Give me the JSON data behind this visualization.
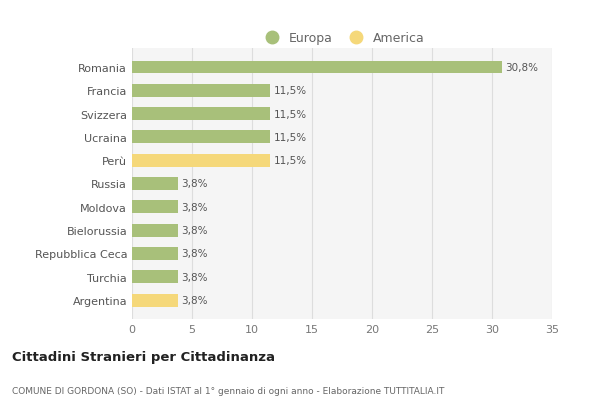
{
  "categories": [
    "Romania",
    "Francia",
    "Svizzera",
    "Ucraina",
    "Perù",
    "Russia",
    "Moldova",
    "Bielorussia",
    "Repubblica Ceca",
    "Turchia",
    "Argentina"
  ],
  "values": [
    30.8,
    11.5,
    11.5,
    11.5,
    11.5,
    3.8,
    3.8,
    3.8,
    3.8,
    3.8,
    3.8
  ],
  "labels": [
    "30,8%",
    "11,5%",
    "11,5%",
    "11,5%",
    "11,5%",
    "3,8%",
    "3,8%",
    "3,8%",
    "3,8%",
    "3,8%",
    "3,8%"
  ],
  "colors": [
    "#a8c07a",
    "#a8c07a",
    "#a8c07a",
    "#a8c07a",
    "#f5d87a",
    "#a8c07a",
    "#a8c07a",
    "#a8c07a",
    "#a8c07a",
    "#a8c07a",
    "#f5d87a"
  ],
  "europa_color": "#a8c07a",
  "america_color": "#f5d87a",
  "legend_europa": "Europa",
  "legend_america": "America",
  "xlim": [
    0,
    35
  ],
  "xticks": [
    0,
    5,
    10,
    15,
    20,
    25,
    30,
    35
  ],
  "title": "Cittadini Stranieri per Cittadinanza",
  "subtitle": "COMUNE DI GORDONA (SO) - Dati ISTAT al 1° gennaio di ogni anno - Elaborazione TUTTITALIA.IT",
  "background_color": "#ffffff",
  "plot_background": "#f5f5f5",
  "grid_color": "#dddddd",
  "bar_height": 0.55
}
